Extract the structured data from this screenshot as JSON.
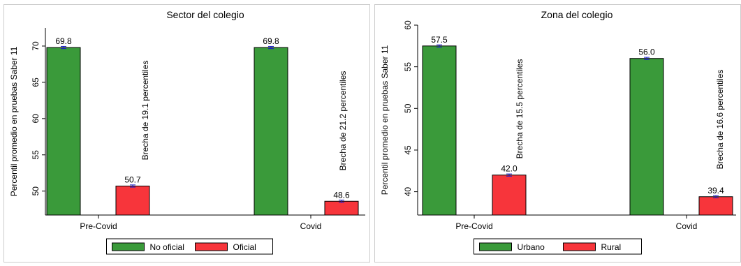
{
  "colors": {
    "green": "#3a9a3a",
    "red": "#f7353b",
    "error_bar": "#1a1acc",
    "frame": "#cccccc"
  },
  "chart_data": [
    {
      "type": "bar",
      "title": "Sector del colegio",
      "ylabel": "Percentil promedio en pruebas Saber 11",
      "xlabel": "",
      "categories": [
        "Pre-Covid",
        "Covid"
      ],
      "series": [
        {
          "name": "No oficial",
          "color": "#3a9a3a",
          "values": [
            69.8,
            69.8
          ],
          "labels": [
            "69.8",
            "69.8"
          ]
        },
        {
          "name": "Oficial",
          "color": "#f7353b",
          "values": [
            50.7,
            48.6
          ],
          "labels": [
            "50.7",
            "48.6"
          ]
        }
      ],
      "annotations": [
        "Brecha de 19.1 percentiles",
        "Brecha de 21.2 percentiles"
      ],
      "ylim": [
        46.7,
        72.5
      ],
      "yticks": [
        50,
        55,
        60,
        65,
        70
      ],
      "grid": false,
      "legend": "bottom"
    },
    {
      "type": "bar",
      "title": "Zona del colegio",
      "ylabel": "Percentil promedio en pruebas Saber 11",
      "xlabel": "",
      "categories": [
        "Pre-Covid",
        "Covid"
      ],
      "series": [
        {
          "name": "Urbano",
          "color": "#3a9a3a",
          "values": [
            57.5,
            56.0
          ],
          "labels": [
            "57.5",
            "56.0"
          ]
        },
        {
          "name": "Rural",
          "color": "#f7353b",
          "values": [
            42.0,
            39.4
          ],
          "labels": [
            "42.0",
            "39.4"
          ]
        }
      ],
      "annotations": [
        "Brecha de 15.5 percentiles",
        "Brecha de 16.6 percentiles"
      ],
      "ylim": [
        37.2,
        60
      ],
      "yticks": [
        40,
        45,
        50,
        55,
        60
      ],
      "grid": false,
      "legend": "bottom"
    }
  ]
}
